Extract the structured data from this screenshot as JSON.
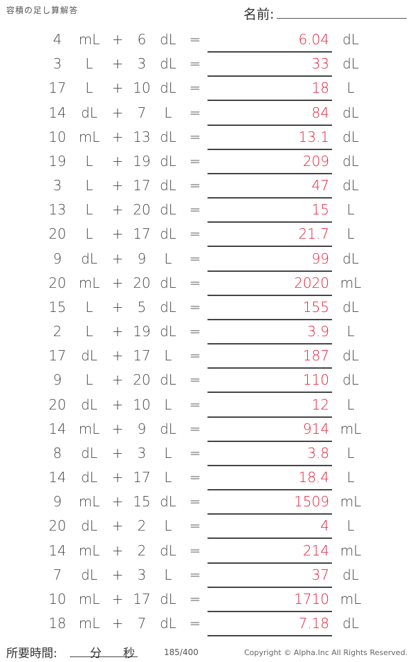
{
  "header": {
    "title": "容積の足し算解答",
    "name_label": "名前:"
  },
  "operator": "+",
  "equals": "=",
  "problems": [
    {
      "a": "4",
      "ua": "mL",
      "b": "6",
      "ub": "dL",
      "answer": "6.04",
      "unit": "dL"
    },
    {
      "a": "3",
      "ua": "L",
      "b": "3",
      "ub": "dL",
      "answer": "33",
      "unit": "dL"
    },
    {
      "a": "17",
      "ua": "L",
      "b": "10",
      "ub": "dL",
      "answer": "18",
      "unit": "L"
    },
    {
      "a": "14",
      "ua": "dL",
      "b": "7",
      "ub": "L",
      "answer": "84",
      "unit": "dL"
    },
    {
      "a": "10",
      "ua": "mL",
      "b": "13",
      "ub": "dL",
      "answer": "13.1",
      "unit": "dL"
    },
    {
      "a": "19",
      "ua": "L",
      "b": "19",
      "ub": "dL",
      "answer": "209",
      "unit": "dL"
    },
    {
      "a": "3",
      "ua": "L",
      "b": "17",
      "ub": "dL",
      "answer": "47",
      "unit": "dL"
    },
    {
      "a": "13",
      "ua": "L",
      "b": "20",
      "ub": "dL",
      "answer": "15",
      "unit": "L"
    },
    {
      "a": "20",
      "ua": "L",
      "b": "17",
      "ub": "dL",
      "answer": "21.7",
      "unit": "L"
    },
    {
      "a": "9",
      "ua": "dL",
      "b": "9",
      "ub": "L",
      "answer": "99",
      "unit": "dL"
    },
    {
      "a": "20",
      "ua": "mL",
      "b": "20",
      "ub": "dL",
      "answer": "2020",
      "unit": "mL"
    },
    {
      "a": "15",
      "ua": "L",
      "b": "5",
      "ub": "dL",
      "answer": "155",
      "unit": "dL"
    },
    {
      "a": "2",
      "ua": "L",
      "b": "19",
      "ub": "dL",
      "answer": "3.9",
      "unit": "L"
    },
    {
      "a": "17",
      "ua": "dL",
      "b": "17",
      "ub": "L",
      "answer": "187",
      "unit": "dL"
    },
    {
      "a": "9",
      "ua": "L",
      "b": "20",
      "ub": "dL",
      "answer": "110",
      "unit": "dL"
    },
    {
      "a": "20",
      "ua": "dL",
      "b": "10",
      "ub": "L",
      "answer": "12",
      "unit": "L"
    },
    {
      "a": "14",
      "ua": "mL",
      "b": "9",
      "ub": "dL",
      "answer": "914",
      "unit": "mL"
    },
    {
      "a": "8",
      "ua": "dL",
      "b": "3",
      "ub": "L",
      "answer": "3.8",
      "unit": "L"
    },
    {
      "a": "14",
      "ua": "dL",
      "b": "17",
      "ub": "L",
      "answer": "18.4",
      "unit": "L"
    },
    {
      "a": "9",
      "ua": "mL",
      "b": "15",
      "ub": "dL",
      "answer": "1509",
      "unit": "mL"
    },
    {
      "a": "20",
      "ua": "dL",
      "b": "2",
      "ub": "L",
      "answer": "4",
      "unit": "L"
    },
    {
      "a": "14",
      "ua": "mL",
      "b": "2",
      "ub": "dL",
      "answer": "214",
      "unit": "mL"
    },
    {
      "a": "7",
      "ua": "dL",
      "b": "3",
      "ub": "L",
      "answer": "37",
      "unit": "dL"
    },
    {
      "a": "10",
      "ua": "mL",
      "b": "17",
      "ub": "dL",
      "answer": "1710",
      "unit": "mL"
    },
    {
      "a": "18",
      "ua": "mL",
      "b": "7",
      "ub": "dL",
      "answer": "7.18",
      "unit": "dL"
    }
  ],
  "footer": {
    "time_label": "所要時間:",
    "minutes": "分",
    "seconds": "秒",
    "page": "185/400",
    "copyright": "Copyright © Alpha.Inc All Rights Reserved."
  },
  "colors": {
    "answer": "#e8203a",
    "text": "#444444"
  }
}
